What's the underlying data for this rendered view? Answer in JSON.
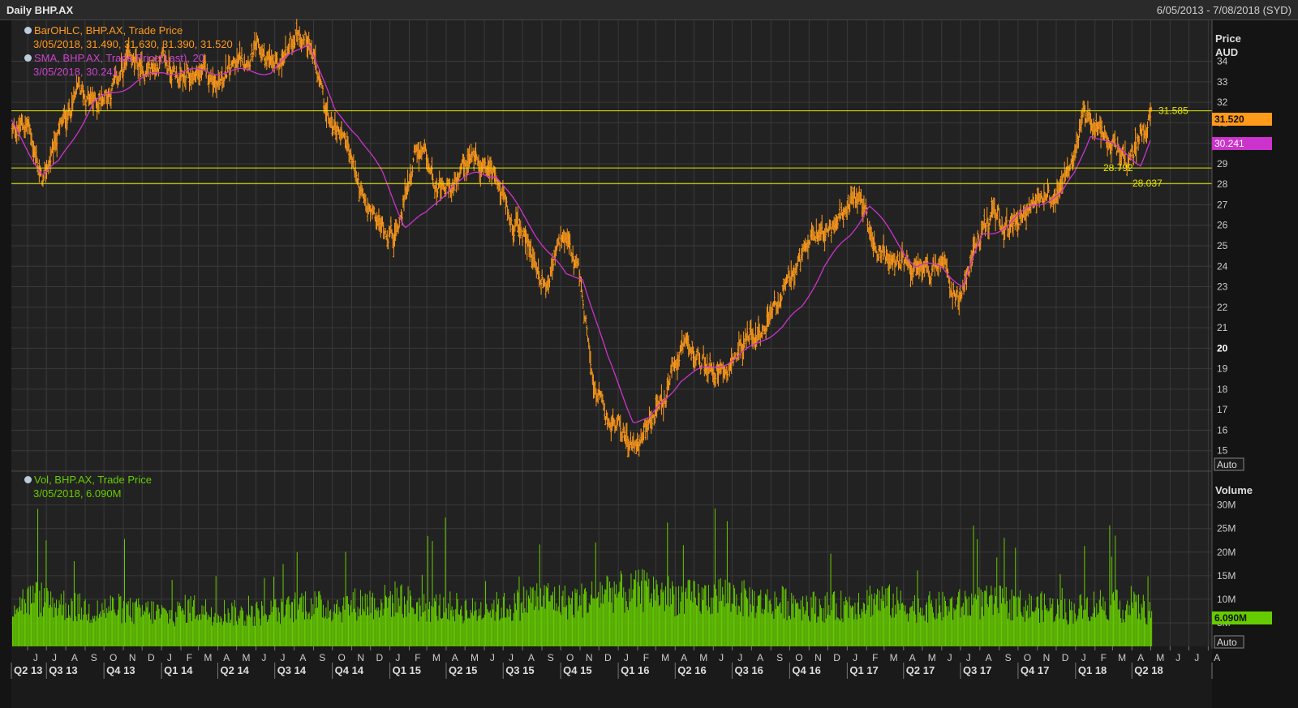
{
  "header": {
    "title": "Daily BHP.AX",
    "range": "6/05/2013 - 7/08/2018 (SYD)"
  },
  "price_panel": {
    "axis_title_1": "Price",
    "axis_title_2": "AUD",
    "auto_label": "Auto",
    "legend": {
      "ohlc_line1": "BarOHLC, BHP.AX, Trade Price",
      "ohlc_line2": "3/05/2018, 31.490, 31.630, 31.390, 31.520",
      "sma_line1": "SMA, BHP.AX, Trade Price(Last), 20",
      "sma_line2": "3/05/2018, 30.241"
    },
    "last_price_tag": "31.520",
    "sma_tag": "30.241",
    "hlines": [
      {
        "value": 31.585,
        "label": "31.585"
      },
      {
        "value": 28.792,
        "label": "28.792"
      },
      {
        "value": 28.037,
        "label": "28.037"
      }
    ]
  },
  "volume_panel": {
    "axis_title": "Volume",
    "auto_label": "Auto",
    "legend": {
      "line1": "Vol, BHP.AX, Trade Price",
      "line2": "3/05/2018, 6.090M"
    },
    "last_tag": "6.090M"
  },
  "colors": {
    "ohlc": "#ff9a1a",
    "sma": "#cc33cc",
    "volume": "#66cc00",
    "hline": "#e6e600",
    "grid": "#3a3a3a"
  },
  "chart_data": [
    {
      "type": "line",
      "title": "Daily BHP.AX",
      "ylabel": "Price AUD",
      "ylim": [
        14,
        36
      ],
      "yticks": [
        15,
        16,
        17,
        18,
        19,
        20,
        21,
        22,
        23,
        24,
        25,
        26,
        27,
        28,
        29,
        30,
        31,
        32,
        33,
        34
      ],
      "x_month_labels": [
        "J",
        "J",
        "A",
        "S",
        "O",
        "N",
        "D",
        "J",
        "F",
        "M",
        "A",
        "M",
        "J",
        "J",
        "A",
        "S",
        "O",
        "N",
        "D",
        "J",
        "F",
        "M",
        "A",
        "M",
        "J",
        "J",
        "A",
        "S",
        "O",
        "N",
        "D",
        "J",
        "F",
        "M",
        "A",
        "M",
        "J",
        "J",
        "A",
        "S",
        "O",
        "N",
        "D",
        "J",
        "F",
        "M",
        "A",
        "M",
        "J",
        "J",
        "A",
        "S",
        "O",
        "N",
        "D",
        "J",
        "F",
        "M",
        "A",
        "M",
        "J",
        "J",
        "A"
      ],
      "x_quarter_labels": [
        "Q2 13",
        "Q3 13",
        "Q4 13",
        "Q1 14",
        "Q2 14",
        "Q3 14",
        "Q4 14",
        "Q1 15",
        "Q2 15",
        "Q3 15",
        "Q4 15",
        "Q1 16",
        "Q2 16",
        "Q3 16",
        "Q4 16",
        "Q1 17",
        "Q2 17",
        "Q3 17",
        "Q4 17",
        "Q1 18",
        "Q2 18"
      ],
      "series": [
        {
          "name": "BarOHLC, BHP.AX, Trade Price",
          "x": [
            "2013-05-06",
            "2013-06-01",
            "2013-06-25",
            "2013-07-20",
            "2013-08-20",
            "2013-09-15",
            "2013-10-10",
            "2013-11-10",
            "2013-12-05",
            "2014-01-05",
            "2014-02-05",
            "2014-03-05",
            "2014-04-05",
            "2014-05-05",
            "2014-06-05",
            "2014-07-05",
            "2014-08-05",
            "2014-08-25",
            "2014-09-25",
            "2014-10-20",
            "2014-11-20",
            "2014-12-15",
            "2015-01-10",
            "2015-02-10",
            "2015-02-28",
            "2015-03-25",
            "2015-04-20",
            "2015-05-15",
            "2015-06-15",
            "2015-07-10",
            "2015-08-10",
            "2015-09-05",
            "2015-10-05",
            "2015-10-30",
            "2015-11-25",
            "2015-12-15",
            "2016-01-10",
            "2016-01-25",
            "2016-02-20",
            "2016-03-15",
            "2016-04-10",
            "2016-05-05",
            "2016-06-01",
            "2016-07-01",
            "2016-07-25",
            "2016-08-20",
            "2016-09-15",
            "2016-10-10",
            "2016-11-05",
            "2016-12-01",
            "2016-12-25",
            "2017-01-20",
            "2017-02-15",
            "2017-03-15",
            "2017-04-10",
            "2017-05-05",
            "2017-06-01",
            "2017-06-28",
            "2017-07-25",
            "2017-08-20",
            "2017-09-15",
            "2017-10-10",
            "2017-11-05",
            "2017-12-01",
            "2017-12-25",
            "2018-01-15",
            "2018-02-05",
            "2018-03-01",
            "2018-03-25",
            "2018-04-15",
            "2018-05-03"
          ],
          "values": [
            30.5,
            31.0,
            28.0,
            30.5,
            32.5,
            32.0,
            32.5,
            34.0,
            33.5,
            34.0,
            33.0,
            33.5,
            33.0,
            34.0,
            34.5,
            33.5,
            35.5,
            35.0,
            31.0,
            30.5,
            27.0,
            26.0,
            25.5,
            29.5,
            29.0,
            27.5,
            28.0,
            29.5,
            28.5,
            26.5,
            25.0,
            23.0,
            25.5,
            23.5,
            18.0,
            16.5,
            16.0,
            15.0,
            16.5,
            17.5,
            20.0,
            19.5,
            19.0,
            19.5,
            20.5,
            21.0,
            22.5,
            23.5,
            26.0,
            25.5,
            26.5,
            27.5,
            25.0,
            24.0,
            24.0,
            23.5,
            24.0,
            22.5,
            25.0,
            26.5,
            26.0,
            26.5,
            27.5,
            27.5,
            29.5,
            31.5,
            30.5,
            30.0,
            29.0,
            30.5,
            31.52
          ]
        },
        {
          "name": "SMA, BHP.AX, Trade Price(Last), 20",
          "x": [
            "2013-05-06",
            "2013-06-25",
            "2013-07-20",
            "2013-09-15",
            "2013-10-20",
            "2013-11-20",
            "2014-01-05",
            "2014-03-05",
            "2014-05-05",
            "2014-06-25",
            "2014-08-05",
            "2014-08-25",
            "2014-10-05",
            "2014-11-10",
            "2014-12-20",
            "2015-01-25",
            "2015-02-28",
            "2015-04-10",
            "2015-05-20",
            "2015-06-20",
            "2015-08-01",
            "2015-09-05",
            "2015-10-10",
            "2015-11-05",
            "2015-12-15",
            "2016-01-25",
            "2016-02-20",
            "2016-04-10",
            "2016-05-20",
            "2016-07-10",
            "2016-08-20",
            "2016-09-20",
            "2016-10-20",
            "2016-11-25",
            "2017-01-05",
            "2017-02-05",
            "2017-03-15",
            "2017-04-20",
            "2017-06-01",
            "2017-07-05",
            "2017-08-05",
            "2017-09-15",
            "2017-10-25",
            "2017-12-10",
            "2017-12-30",
            "2018-01-25",
            "2018-02-20",
            "2018-03-25",
            "2018-04-15",
            "2018-05-03"
          ],
          "values": [
            31.0,
            28.5,
            29.0,
            32.0,
            32.5,
            33.0,
            33.5,
            33.5,
            33.5,
            33.5,
            34.5,
            35.0,
            31.5,
            30.5,
            28.5,
            26.0,
            26.5,
            28.0,
            28.5,
            28.5,
            26.5,
            25.0,
            23.5,
            23.5,
            19.5,
            16.5,
            16.5,
            18.5,
            19.0,
            19.5,
            20.5,
            21.0,
            22.0,
            24.0,
            25.5,
            27.0,
            25.5,
            24.0,
            24.0,
            23.0,
            25.5,
            26.0,
            27.0,
            27.5,
            28.5,
            30.5,
            30.0,
            29.5,
            29.0,
            30.241
          ]
        }
      ]
    },
    {
      "type": "bar",
      "title": "Vol, BHP.AX, Trade Price",
      "ylabel": "Volume",
      "ylim": [
        0,
        37
      ],
      "yticks": [
        5,
        10,
        15,
        20,
        25,
        30
      ],
      "ytick_labels": [
        "5M",
        "10M",
        "15M",
        "20M",
        "25M",
        "30M"
      ],
      "series": [
        {
          "name": "Vol, BHP.AX, Trade Price",
          "x": [
            "2013-05",
            "2013-06",
            "2013-07",
            "2013-08",
            "2013-09",
            "2013-10",
            "2013-11",
            "2013-12",
            "2014-01",
            "2014-02",
            "2014-03",
            "2014-04",
            "2014-05",
            "2014-06",
            "2014-07",
            "2014-08",
            "2014-09",
            "2014-10",
            "2014-11",
            "2014-12",
            "2015-01",
            "2015-02",
            "2015-03",
            "2015-04",
            "2015-05",
            "2015-06",
            "2015-07",
            "2015-08",
            "2015-09",
            "2015-10",
            "2015-11",
            "2015-12",
            "2016-01",
            "2016-02",
            "2016-03",
            "2016-04",
            "2016-05",
            "2016-06",
            "2016-07",
            "2016-08",
            "2016-09",
            "2016-10",
            "2016-11",
            "2016-12",
            "2017-01",
            "2017-02",
            "2017-03",
            "2017-04",
            "2017-05",
            "2017-06",
            "2017-07",
            "2017-08",
            "2017-09",
            "2017-10",
            "2017-11",
            "2017-12",
            "2018-01",
            "2018-02",
            "2018-03",
            "2018-04",
            "2018-05"
          ],
          "values": [
            10,
            11,
            10,
            9,
            8,
            9,
            8,
            8,
            7,
            9,
            8,
            8,
            7,
            8,
            8,
            10,
            9,
            9,
            10,
            10,
            11,
            9,
            9,
            9,
            8,
            9,
            9,
            11,
            11,
            10,
            11,
            13,
            12,
            13,
            12,
            11,
            11,
            12,
            11,
            10,
            10,
            10,
            9,
            9,
            10,
            11,
            10,
            9,
            9,
            9,
            10,
            10,
            10,
            9,
            9,
            8,
            9,
            10,
            9,
            9,
            6.09
          ]
        }
      ]
    }
  ]
}
